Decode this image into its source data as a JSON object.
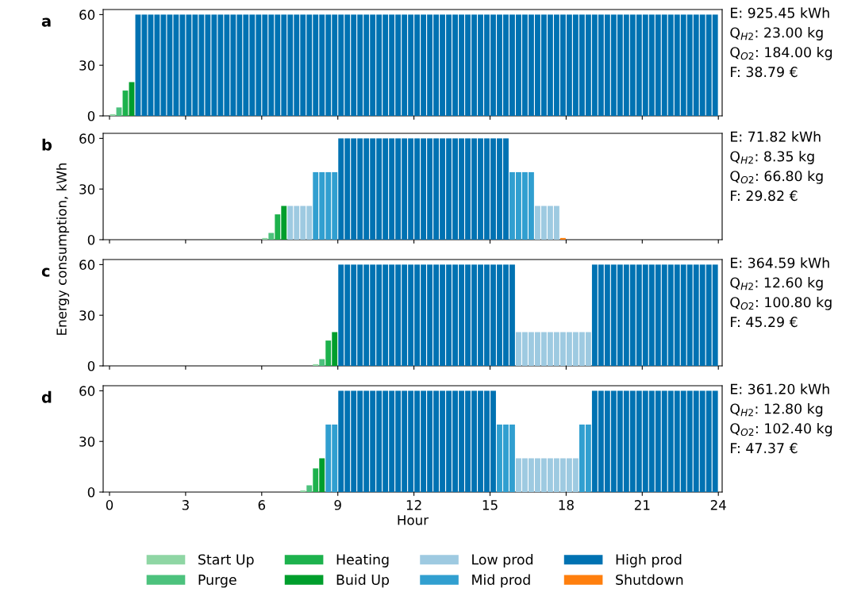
{
  "chart_data": [
    {
      "type": "bar",
      "title": "a",
      "legend": "bottom",
      "xlim": [
        -0.25,
        24.15
      ],
      "ylim": [
        0,
        63
      ],
      "xticks": [
        0,
        3,
        6,
        9,
        12,
        15,
        18,
        21,
        24
      ],
      "yticks": [
        0,
        30,
        60
      ],
      "tick_labels": "y",
      "annotations": [
        "E: 925.45 kWh",
        "Q$_{H2}$: 23.00 kg",
        "Q$_{O2}$: 184.00 kg",
        "F: 38.79 €"
      ],
      "series": [
        {
          "name": "Start Up",
          "color": "#8fd6a4",
          "x": [
            0.125
          ],
          "values": [
            1
          ]
        },
        {
          "name": "Purge",
          "color": "#4cc27d",
          "x": [
            0.375
          ],
          "values": [
            5
          ]
        },
        {
          "name": "Heating",
          "color": "#1db24d",
          "x": [
            0.625
          ],
          "values": [
            15
          ]
        },
        {
          "name": "Buid Up",
          "color": "#009e2c",
          "x": [
            0.875
          ],
          "values": [
            20
          ]
        },
        {
          "name": "High prod",
          "color": "#0072b2",
          "x": [
            1.125,
            1.375,
            1.625,
            1.875,
            2.125,
            2.375,
            2.625,
            2.875,
            3.125,
            3.375,
            3.625,
            3.875,
            4.125,
            4.375,
            4.625,
            4.875,
            5.125,
            5.375,
            5.625,
            5.875,
            6.125,
            6.375,
            6.625,
            6.875,
            7.125,
            7.375,
            7.625,
            7.875,
            8.125,
            8.375,
            8.625,
            8.875,
            9.125,
            9.375,
            9.625,
            9.875,
            10.125,
            10.375,
            10.625,
            10.875,
            11.125,
            11.375,
            11.625,
            11.875,
            12.125,
            12.375,
            12.625,
            12.875,
            13.125,
            13.375,
            13.625,
            13.875,
            14.125,
            14.375,
            14.625,
            14.875,
            15.125,
            15.375,
            15.625,
            15.875,
            16.125,
            16.375,
            16.625,
            16.875,
            17.125,
            17.375,
            17.625,
            17.875,
            18.125,
            18.375,
            18.625,
            18.875,
            19.125,
            19.375,
            19.625,
            19.875,
            20.125,
            20.375,
            20.625,
            20.875,
            21.125,
            21.375,
            21.625,
            21.875,
            22.125,
            22.375,
            22.625,
            22.875,
            23.125,
            23.375,
            23.625,
            23.875
          ],
          "values": [
            60,
            60,
            60,
            60,
            60,
            60,
            60,
            60,
            60,
            60,
            60,
            60,
            60,
            60,
            60,
            60,
            60,
            60,
            60,
            60,
            60,
            60,
            60,
            60,
            60,
            60,
            60,
            60,
            60,
            60,
            60,
            60,
            60,
            60,
            60,
            60,
            60,
            60,
            60,
            60,
            60,
            60,
            60,
            60,
            60,
            60,
            60,
            60,
            60,
            60,
            60,
            60,
            60,
            60,
            60,
            60,
            60,
            60,
            60,
            60,
            60,
            60,
            60,
            60,
            60,
            60,
            60,
            60,
            60,
            60,
            60,
            60,
            60,
            60,
            60,
            60,
            60,
            60,
            60,
            60,
            60,
            60,
            60,
            60,
            60,
            60,
            60,
            60,
            60,
            60,
            60,
            60
          ]
        }
      ]
    },
    {
      "type": "bar",
      "title": "b",
      "legend": "bottom",
      "ylabel": "Energy consumption, kWh",
      "xlim": [
        -0.25,
        24.15
      ],
      "ylim": [
        0,
        63
      ],
      "xticks": [
        0,
        3,
        6,
        9,
        12,
        15,
        18,
        21,
        24
      ],
      "yticks": [
        0,
        30,
        60
      ],
      "tick_labels": "y",
      "annotations": [
        "E: 71.82 kWh",
        "Q$_{H2}$: 8.35 kg",
        "Q$_{O2}$: 66.80 kg",
        "F: 29.82 €"
      ],
      "series": [
        {
          "name": "Start Up",
          "color": "#8fd6a4",
          "x": [
            6.125
          ],
          "values": [
            1
          ]
        },
        {
          "name": "Purge",
          "color": "#4cc27d",
          "x": [
            6.375
          ],
          "values": [
            4
          ]
        },
        {
          "name": "Heating",
          "color": "#1db24d",
          "x": [
            6.625
          ],
          "values": [
            15
          ]
        },
        {
          "name": "Buid Up",
          "color": "#009e2c",
          "x": [
            6.875
          ],
          "values": [
            20
          ]
        },
        {
          "name": "Low prod",
          "color": "#9ecae1",
          "x": [
            7.125,
            7.375,
            7.625,
            7.875,
            16.875,
            17.125,
            17.375,
            17.625
          ],
          "values": [
            20,
            20,
            20,
            20,
            20,
            20,
            20,
            20
          ]
        },
        {
          "name": "Mid prod",
          "color": "#319fd0",
          "x": [
            8.125,
            8.375,
            8.625,
            8.875,
            15.875,
            16.125,
            16.375,
            16.625
          ],
          "values": [
            40,
            40,
            40,
            40,
            40,
            40,
            40,
            40
          ]
        },
        {
          "name": "High prod",
          "color": "#0072b2",
          "x": [
            9.125,
            9.375,
            9.625,
            9.875,
            10.125,
            10.375,
            10.625,
            10.875,
            11.125,
            11.375,
            11.625,
            11.875,
            12.125,
            12.375,
            12.625,
            12.875,
            13.125,
            13.375,
            13.625,
            13.875,
            14.125,
            14.375,
            14.625,
            14.875,
            15.125,
            15.375,
            15.625
          ],
          "values": [
            60,
            60,
            60,
            60,
            60,
            60,
            60,
            60,
            60,
            60,
            60,
            60,
            60,
            60,
            60,
            60,
            60,
            60,
            60,
            60,
            60,
            60,
            60,
            60,
            60,
            60,
            60
          ]
        },
        {
          "name": "Shutdown",
          "color": "#ff7f0e",
          "x": [
            17.875
          ],
          "values": [
            1
          ]
        }
      ]
    },
    {
      "type": "bar",
      "title": "c",
      "legend": "bottom",
      "xlim": [
        -0.25,
        24.15
      ],
      "ylim": [
        0,
        63
      ],
      "xticks": [
        0,
        3,
        6,
        9,
        12,
        15,
        18,
        21,
        24
      ],
      "yticks": [
        0,
        30,
        60
      ],
      "tick_labels": "y",
      "annotations": [
        "E: 364.59 kWh",
        "Q$_{H2}$: 12.60 kg",
        "Q$_{O2}$: 100.80 kg",
        "F: 45.29 €"
      ],
      "series": [
        {
          "name": "Start Up",
          "color": "#8fd6a4",
          "x": [
            8.125
          ],
          "values": [
            1
          ]
        },
        {
          "name": "Purge",
          "color": "#4cc27d",
          "x": [
            8.375
          ],
          "values": [
            4
          ]
        },
        {
          "name": "Heating",
          "color": "#1db24d",
          "x": [
            8.625
          ],
          "values": [
            15
          ]
        },
        {
          "name": "Buid Up",
          "color": "#009e2c",
          "x": [
            8.875
          ],
          "values": [
            20
          ]
        },
        {
          "name": "Low prod",
          "color": "#9ecae1",
          "x": [
            16.125,
            16.375,
            16.625,
            16.875,
            17.125,
            17.375,
            17.625,
            17.875,
            18.125,
            18.375,
            18.625,
            18.875
          ],
          "values": [
            20,
            20,
            20,
            20,
            20,
            20,
            20,
            20,
            20,
            20,
            20,
            20
          ]
        },
        {
          "name": "High prod",
          "color": "#0072b2",
          "x": [
            9.125,
            9.375,
            9.625,
            9.875,
            10.125,
            10.375,
            10.625,
            10.875,
            11.125,
            11.375,
            11.625,
            11.875,
            12.125,
            12.375,
            12.625,
            12.875,
            13.125,
            13.375,
            13.625,
            13.875,
            14.125,
            14.375,
            14.625,
            14.875,
            15.125,
            15.375,
            15.625,
            15.875,
            19.125,
            19.375,
            19.625,
            19.875,
            20.125,
            20.375,
            20.625,
            20.875,
            21.125,
            21.375,
            21.625,
            21.875,
            22.125,
            22.375,
            22.625,
            22.875,
            23.125,
            23.375,
            23.625,
            23.875
          ],
          "values": [
            60,
            60,
            60,
            60,
            60,
            60,
            60,
            60,
            60,
            60,
            60,
            60,
            60,
            60,
            60,
            60,
            60,
            60,
            60,
            60,
            60,
            60,
            60,
            60,
            60,
            60,
            60,
            60,
            60,
            60,
            60,
            60,
            60,
            60,
            60,
            60,
            60,
            60,
            60,
            60,
            60,
            60,
            60,
            60,
            60,
            60,
            60,
            60
          ]
        }
      ]
    },
    {
      "type": "bar",
      "title": "d",
      "xlabel": "Hour",
      "xlim": [
        -0.25,
        24.15
      ],
      "ylim": [
        0,
        63
      ],
      "xticks": [
        0,
        3,
        6,
        9,
        12,
        15,
        18,
        21,
        24
      ],
      "yticks": [
        0,
        30,
        60
      ],
      "legend": "bottom",
      "annotations": [
        "E: 361.20 kWh",
        "Q$_{H2}$: 12.80 kg",
        "Q$_{O2}$: 102.40 kg",
        "F: 47.37 €"
      ],
      "series": [
        {
          "name": "Start Up",
          "color": "#8fd6a4",
          "x": [
            7.625
          ],
          "values": [
            1
          ]
        },
        {
          "name": "Purge",
          "color": "#4cc27d",
          "x": [
            7.875
          ],
          "values": [
            4
          ]
        },
        {
          "name": "Heating",
          "color": "#1db24d",
          "x": [
            8.125
          ],
          "values": [
            14
          ]
        },
        {
          "name": "Buid Up",
          "color": "#009e2c",
          "x": [
            8.375
          ],
          "values": [
            20
          ]
        },
        {
          "name": "Low prod",
          "color": "#9ecae1",
          "x": [
            16.125,
            16.375,
            16.625,
            16.875,
            17.125,
            17.375,
            17.625,
            17.875,
            18.125,
            18.375
          ],
          "values": [
            20,
            20,
            20,
            20,
            20,
            20,
            20,
            20,
            20,
            20
          ]
        },
        {
          "name": "Mid prod",
          "color": "#319fd0",
          "x": [
            8.625,
            8.875,
            15.375,
            15.625,
            15.875,
            18.625,
            18.875
          ],
          "values": [
            40,
            40,
            40,
            40,
            40,
            40,
            40
          ]
        },
        {
          "name": "High prod",
          "color": "#0072b2",
          "x": [
            9.125,
            9.375,
            9.625,
            9.875,
            10.125,
            10.375,
            10.625,
            10.875,
            11.125,
            11.375,
            11.625,
            11.875,
            12.125,
            12.375,
            12.625,
            12.875,
            13.125,
            13.375,
            13.625,
            13.875,
            14.125,
            14.375,
            14.625,
            14.875,
            15.125,
            19.125,
            19.375,
            19.625,
            19.875,
            20.125,
            20.375,
            20.625,
            20.875,
            21.125,
            21.375,
            21.625,
            21.875,
            22.125,
            22.375,
            22.625,
            22.875,
            23.125,
            23.375,
            23.625,
            23.875
          ],
          "values": [
            60,
            60,
            60,
            60,
            60,
            60,
            60,
            60,
            60,
            60,
            60,
            60,
            60,
            60,
            60,
            60,
            60,
            60,
            60,
            60,
            60,
            60,
            60,
            60,
            60,
            60,
            60,
            60,
            60,
            60,
            60,
            60,
            60,
            60,
            60,
            60,
            60,
            60,
            60,
            60,
            60,
            60,
            60,
            60,
            60
          ]
        }
      ]
    }
  ]
}
